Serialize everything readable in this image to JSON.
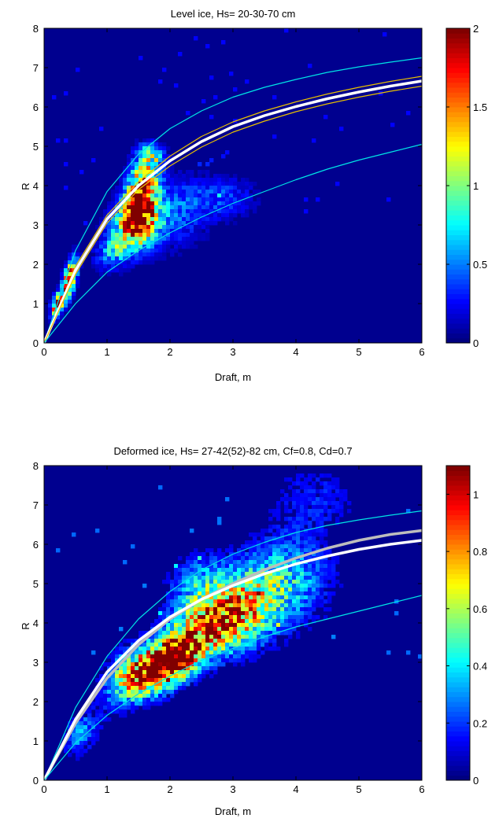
{
  "chart_data": [
    {
      "type": "heatmap",
      "title": "Level ice, Hs= 20-30-70 cm",
      "xlabel": "Draft, m",
      "ylabel": "R",
      "xlim": [
        0,
        6
      ],
      "ylim": [
        0,
        8
      ],
      "xticks": [
        "0",
        "1",
        "2",
        "3",
        "4",
        "5",
        "6"
      ],
      "yticks": [
        "0",
        "1",
        "2",
        "3",
        "4",
        "5",
        "6",
        "7",
        "8"
      ],
      "background_color": "#00008f",
      "colorbar": {
        "range": [
          0,
          2
        ],
        "ticks": [
          {
            "value": 0,
            "label": "0"
          },
          {
            "value": 0.5,
            "label": "0.5"
          },
          {
            "value": 1,
            "label": "1"
          },
          {
            "value": 1.5,
            "label": "1.5"
          },
          {
            "value": 2,
            "label": "2"
          }
        ],
        "colormap": "jet"
      },
      "density_blobs": [
        {
          "x": 0.4,
          "y": 1.6,
          "sx": 0.08,
          "sy": 0.35,
          "rho": 0.6,
          "amp": 2.0
        },
        {
          "x": 0.2,
          "y": 0.95,
          "sx": 0.06,
          "sy": 0.2,
          "rho": 0.4,
          "amp": 1.7
        },
        {
          "x": 1.55,
          "y": 3.8,
          "sx": 0.16,
          "sy": 0.55,
          "rho": 0.3,
          "amp": 2.0
        },
        {
          "x": 1.45,
          "y": 3.0,
          "sx": 0.25,
          "sy": 0.45,
          "rho": 0.2,
          "amp": 1.2
        },
        {
          "x": 2.0,
          "y": 3.3,
          "sx": 0.45,
          "sy": 0.6,
          "rho": 0.2,
          "amp": 0.45
        },
        {
          "x": 2.9,
          "y": 3.7,
          "sx": 0.35,
          "sy": 0.35,
          "rho": 0.0,
          "amp": 0.3
        },
        {
          "x": 1.1,
          "y": 2.3,
          "sx": 0.2,
          "sy": 0.3,
          "rho": 0.3,
          "amp": 0.5
        },
        {
          "x": 1.7,
          "y": 4.8,
          "sx": 0.15,
          "sy": 0.2,
          "rho": 0.0,
          "amp": 0.6
        }
      ],
      "curves": [
        {
          "name": "upper-cyan",
          "color": "#00e5e5",
          "width": 1.2,
          "x": [
            0,
            0.5,
            1,
            1.5,
            2,
            2.5,
            3,
            3.5,
            4,
            4.5,
            5,
            5.5,
            6
          ],
          "y": [
            0,
            2.35,
            3.85,
            4.8,
            5.45,
            5.9,
            6.25,
            6.5,
            6.7,
            6.88,
            7.02,
            7.14,
            7.25
          ]
        },
        {
          "name": "upper-yellow",
          "color": "#e8c000",
          "width": 1.2,
          "x": [
            0,
            0.5,
            1,
            1.5,
            2,
            2.5,
            3,
            3.5,
            4,
            4.5,
            5,
            5.5,
            6
          ],
          "y": [
            0,
            1.95,
            3.25,
            4.1,
            4.75,
            5.25,
            5.62,
            5.9,
            6.13,
            6.33,
            6.5,
            6.65,
            6.78
          ]
        },
        {
          "name": "fit-white",
          "color": "#ffffff",
          "width": 3.5,
          "x": [
            0,
            0.5,
            1,
            1.5,
            2,
            2.5,
            3,
            3.5,
            4,
            4.5,
            5,
            5.5,
            6
          ],
          "y": [
            0,
            1.85,
            3.15,
            4.0,
            4.63,
            5.12,
            5.5,
            5.78,
            6.01,
            6.21,
            6.38,
            6.53,
            6.66
          ]
        },
        {
          "name": "lower-yellow",
          "color": "#e8c000",
          "width": 1.2,
          "x": [
            0,
            0.5,
            1,
            1.5,
            2,
            2.5,
            3,
            3.5,
            4,
            4.5,
            5,
            5.5,
            6
          ],
          "y": [
            0,
            1.75,
            3.05,
            3.9,
            4.5,
            4.98,
            5.36,
            5.64,
            5.88,
            6.08,
            6.25,
            6.4,
            6.53
          ]
        },
        {
          "name": "lower-cyan",
          "color": "#00e5e5",
          "width": 1.2,
          "x": [
            0,
            0.5,
            1,
            1.5,
            2,
            2.5,
            3,
            3.5,
            4,
            4.5,
            5,
            5.5,
            6
          ],
          "y": [
            0,
            1.0,
            1.8,
            2.35,
            2.8,
            3.2,
            3.55,
            3.85,
            4.15,
            4.42,
            4.65,
            4.85,
            5.05
          ]
        }
      ]
    },
    {
      "type": "heatmap",
      "title": "Deformed ice, Hs= 27-42(52)-82 cm, Cf=0.8, Cd=0.7",
      "xlabel": "Draft, m",
      "ylabel": "R",
      "xlim": [
        0,
        6
      ],
      "ylim": [
        0,
        8
      ],
      "xticks": [
        "0",
        "1",
        "2",
        "3",
        "4",
        "5",
        "6"
      ],
      "yticks": [
        "0",
        "1",
        "2",
        "3",
        "4",
        "5",
        "6",
        "7",
        "8"
      ],
      "background_color": "#00008f",
      "colorbar": {
        "range": [
          0,
          1.1
        ],
        "ticks": [
          {
            "value": 0,
            "label": "0"
          },
          {
            "value": 0.2,
            "label": "0.2"
          },
          {
            "value": 0.4,
            "label": "0.4"
          },
          {
            "value": 0.6,
            "label": "0.6"
          },
          {
            "value": 0.8,
            "label": "0.8"
          },
          {
            "value": 1,
            "label": "1"
          }
        ],
        "colormap": "jet"
      },
      "density_blobs": [
        {
          "x": 2.05,
          "y": 3.1,
          "sx": 0.3,
          "sy": 0.4,
          "rho": 0.3,
          "amp": 1.0
        },
        {
          "x": 1.7,
          "y": 2.7,
          "sx": 0.3,
          "sy": 0.4,
          "rho": 0.3,
          "amp": 0.75
        },
        {
          "x": 2.6,
          "y": 3.9,
          "sx": 0.45,
          "sy": 0.55,
          "rho": 0.3,
          "amp": 0.7
        },
        {
          "x": 3.2,
          "y": 4.4,
          "sx": 0.45,
          "sy": 0.7,
          "rho": 0.2,
          "amp": 0.5
        },
        {
          "x": 1.3,
          "y": 2.6,
          "sx": 0.25,
          "sy": 0.5,
          "rho": 0.3,
          "amp": 0.4
        },
        {
          "x": 3.9,
          "y": 5.2,
          "sx": 0.5,
          "sy": 0.8,
          "rho": 0.0,
          "amp": 0.3
        },
        {
          "x": 0.6,
          "y": 1.2,
          "sx": 0.2,
          "sy": 0.4,
          "rho": 0.4,
          "amp": 0.3
        },
        {
          "x": 2.5,
          "y": 5.0,
          "sx": 0.35,
          "sy": 0.5,
          "rho": 0.0,
          "amp": 0.3
        },
        {
          "x": 4.3,
          "y": 7.2,
          "sx": 0.5,
          "sy": 0.6,
          "rho": 0.0,
          "amp": 0.15
        }
      ],
      "curves": [
        {
          "name": "upper-cyan",
          "color": "#00e5e5",
          "width": 1.2,
          "x": [
            0,
            0.5,
            1,
            1.5,
            2,
            2.5,
            3,
            3.5,
            4,
            4.5,
            5,
            5.5,
            6
          ],
          "y": [
            0,
            1.85,
            3.15,
            4.1,
            4.8,
            5.35,
            5.75,
            6.05,
            6.3,
            6.48,
            6.62,
            6.74,
            6.85
          ]
        },
        {
          "name": "fit-gray",
          "color": "#bdbdbd",
          "width": 3.5,
          "x": [
            0,
            0.5,
            1,
            1.5,
            2,
            2.5,
            3,
            3.5,
            4,
            4.5,
            5,
            5.5,
            6
          ],
          "y": [
            0,
            1.45,
            2.6,
            3.45,
            4.1,
            4.6,
            5.0,
            5.35,
            5.65,
            5.9,
            6.1,
            6.25,
            6.35
          ]
        },
        {
          "name": "fit-white",
          "color": "#ffffff",
          "width": 3.5,
          "x": [
            0,
            0.5,
            1,
            1.5,
            2,
            2.5,
            3,
            3.5,
            4,
            4.5,
            5,
            5.5,
            6
          ],
          "y": [
            0,
            1.55,
            2.75,
            3.55,
            4.15,
            4.6,
            4.95,
            5.25,
            5.5,
            5.7,
            5.87,
            6.0,
            6.1
          ]
        },
        {
          "name": "lower-cyan",
          "color": "#00e5e5",
          "width": 1.2,
          "x": [
            0,
            0.5,
            1,
            1.5,
            2,
            2.5,
            3,
            3.5,
            4,
            4.5,
            5,
            5.5,
            6
          ],
          "y": [
            0,
            0.95,
            1.65,
            2.2,
            2.65,
            3.05,
            3.35,
            3.65,
            3.9,
            4.1,
            4.3,
            4.5,
            4.7
          ]
        }
      ]
    }
  ]
}
